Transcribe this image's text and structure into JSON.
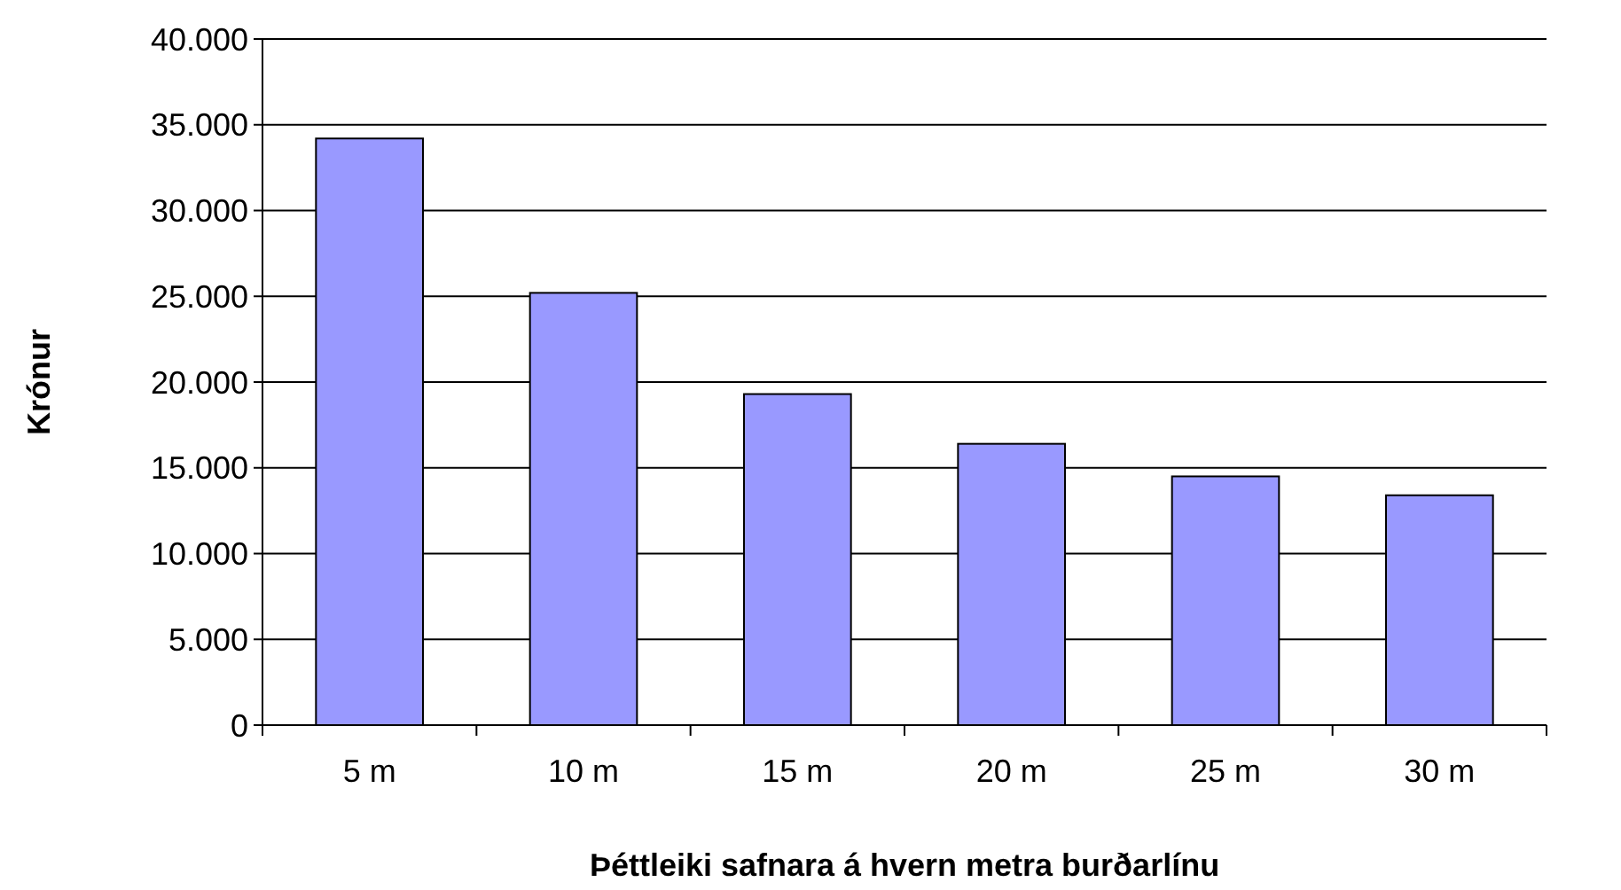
{
  "chart_data": {
    "type": "bar",
    "xlabel": "Þéttleiki safnara á hvern metra burðarlínu",
    "ylabel": "Krónur",
    "categories": [
      "5 m",
      "10 m",
      "15 m",
      "20 m",
      "25 m",
      "30 m"
    ],
    "values": [
      34200,
      25200,
      19300,
      16400,
      14500,
      13400
    ],
    "color": "#9999ff",
    "ylim": [
      0,
      40000
    ],
    "yticks": [
      {
        "value": 0,
        "label": "0"
      },
      {
        "value": 5000,
        "label": "5.000"
      },
      {
        "value": 10000,
        "label": "10.000"
      },
      {
        "value": 15000,
        "label": "15.000"
      },
      {
        "value": 20000,
        "label": "20.000"
      },
      {
        "value": 25000,
        "label": "25.000"
      },
      {
        "value": 30000,
        "label": "30.000"
      },
      {
        "value": 35000,
        "label": "35.000"
      },
      {
        "value": 40000,
        "label": "40.000"
      }
    ],
    "grid": "y"
  }
}
